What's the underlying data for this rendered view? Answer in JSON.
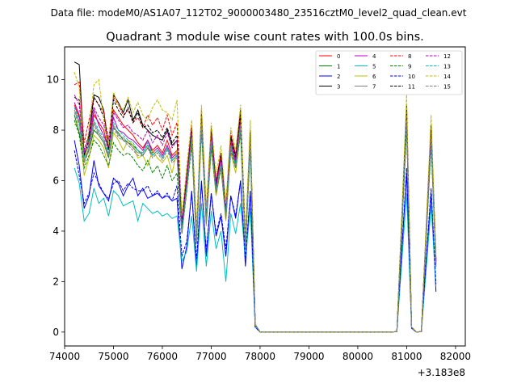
{
  "chart_data": {
    "type": "line",
    "suptitle": "Data file: modeM0/AS1A07_112T02_9000003480_23516cztM0_level2_quad_clean.evt",
    "title": "Quadrant 3 module wise count rates with 100.0s bins.",
    "xlabel": "",
    "ylabel": "",
    "x_offset_label": "+3.183e8",
    "xlim": [
      74000,
      82200
    ],
    "ylim": [
      -0.55,
      11.3
    ],
    "xticks": [
      74000,
      75000,
      76000,
      77000,
      78000,
      79000,
      80000,
      81000,
      82000
    ],
    "yticks": [
      0,
      2,
      4,
      6,
      8,
      10
    ],
    "x_start": 74200,
    "x_step": 100,
    "active_end": 78000,
    "zero_end": 80800,
    "series": [
      {
        "name": "0",
        "color": "#ff0000",
        "dash": false,
        "pre": [
          9.0,
          8.5,
          7.0,
          7.4,
          8.6,
          8.3,
          8.0,
          7.2,
          8.8,
          8.5,
          8.2,
          8.0,
          7.8,
          7.5,
          7.3,
          7.6,
          7.2,
          7.4,
          7.1,
          7.6,
          7.0,
          7.2,
          4.2,
          6.0,
          7.9,
          3.8,
          8.5,
          4.6,
          7.8,
          5.8,
          6.9,
          4.8,
          7.6,
          6.8,
          8.4,
          3.5,
          7.8,
          0.3
        ],
        "tail": [
          0.02,
          4.3,
          8.6,
          0.2,
          0.0,
          0.02,
          4.0,
          7.9,
          2.8
        ]
      },
      {
        "name": "1",
        "color": "#008000",
        "dash": false,
        "pre": [
          8.6,
          7.9,
          6.8,
          7.2,
          8.0,
          7.8,
          7.5,
          6.9,
          8.1,
          7.9,
          7.6,
          7.5,
          7.4,
          7.2,
          7.0,
          7.3,
          7.0,
          7.2,
          6.9,
          7.3,
          6.8,
          7.0,
          4.0,
          5.8,
          7.6,
          3.6,
          8.2,
          4.4,
          7.5,
          5.6,
          6.7,
          4.6,
          7.3,
          6.6,
          8.1,
          3.4,
          7.5,
          0.3
        ],
        "tail": [
          0.02,
          4.1,
          8.3,
          0.2,
          0.0,
          0.02,
          3.8,
          7.6,
          2.7
        ]
      },
      {
        "name": "2",
        "color": "#0000ff",
        "dash": false,
        "pre": [
          7.6,
          6.6,
          4.9,
          5.4,
          6.8,
          5.8,
          5.5,
          5.2,
          6.1,
          5.9,
          5.4,
          5.8,
          6.1,
          5.4,
          5.7,
          5.3,
          5.4,
          5.5,
          5.3,
          5.4,
          5.2,
          5.3,
          2.5,
          3.4,
          5.6,
          2.5,
          6.0,
          3.0,
          5.5,
          3.8,
          4.6,
          3.0,
          5.4,
          4.5,
          6.0,
          2.6,
          5.6,
          0.2
        ],
        "tail": [
          0.02,
          3.2,
          6.3,
          0.15,
          0.0,
          0.02,
          2.8,
          5.5,
          1.6
        ]
      },
      {
        "name": "3",
        "color": "#000000",
        "dash": false,
        "pre": [
          10.7,
          10.6,
          7.0,
          7.8,
          9.4,
          9.3,
          8.8,
          7.3,
          9.4,
          9.1,
          8.7,
          9.2,
          8.4,
          8.8,
          8.2,
          8.0,
          7.8,
          7.7,
          7.6,
          8.0,
          7.4,
          7.6,
          4.4,
          6.2,
          8.1,
          3.9,
          8.7,
          4.7,
          8.0,
          5.9,
          7.1,
          4.9,
          7.8,
          7.0,
          8.8,
          3.6,
          8.0,
          0.3
        ],
        "tail": [
          0.02,
          4.5,
          9.0,
          0.2,
          0.0,
          0.02,
          4.1,
          8.2,
          2.9
        ]
      },
      {
        "name": "4",
        "color": "#bf00bf",
        "dash": false,
        "pre": [
          9.1,
          8.6,
          7.1,
          7.6,
          8.8,
          8.2,
          7.8,
          7.3,
          8.5,
          8.0,
          7.9,
          7.7,
          7.6,
          7.4,
          7.2,
          7.6,
          7.1,
          7.3,
          7.0,
          7.4,
          6.9,
          7.1,
          4.1,
          5.9,
          7.8,
          3.7,
          8.4,
          4.5,
          7.7,
          5.7,
          6.8,
          4.7,
          7.5,
          6.7,
          8.3,
          3.5,
          7.7,
          0.3
        ],
        "tail": [
          0.02,
          4.2,
          8.5,
          0.2,
          0.0,
          0.02,
          3.9,
          7.8,
          2.8
        ]
      },
      {
        "name": "5",
        "color": "#00bfbf",
        "dash": false,
        "pre": [
          6.5,
          5.9,
          4.4,
          4.7,
          5.7,
          5.1,
          5.3,
          4.6,
          5.6,
          5.4,
          5.0,
          5.1,
          5.2,
          4.4,
          5.1,
          4.9,
          4.7,
          4.8,
          4.6,
          4.7,
          4.5,
          4.6,
          2.8,
          3.2,
          4.6,
          2.4,
          5.1,
          2.6,
          4.8,
          3.3,
          4.0,
          2.0,
          4.7,
          3.9,
          5.1,
          2.9,
          4.9,
          0.2
        ],
        "tail": [
          0.02,
          2.8,
          5.5,
          0.15,
          0.0,
          0.02,
          2.5,
          5.0,
          1.8
        ]
      },
      {
        "name": "6",
        "color": "#bfbf00",
        "dash": false,
        "pre": [
          8.2,
          8.4,
          6.2,
          6.9,
          7.8,
          7.6,
          7.3,
          6.5,
          7.9,
          7.6,
          7.2,
          7.6,
          7.4,
          6.9,
          7.0,
          6.6,
          7.2,
          6.9,
          6.7,
          7.0,
          6.3,
          7.2,
          4.0,
          5.6,
          7.5,
          3.5,
          8.0,
          4.2,
          7.3,
          5.4,
          6.5,
          4.4,
          7.1,
          6.3,
          7.9,
          3.3,
          7.4,
          0.3
        ],
        "tail": [
          0.02,
          4.4,
          8.8,
          0.2,
          0.0,
          0.02,
          4.0,
          8.0,
          2.7
        ]
      },
      {
        "name": "7",
        "color": "#7f7f7f",
        "dash": false,
        "pre": [
          8.8,
          8.3,
          6.8,
          7.3,
          8.3,
          7.9,
          7.6,
          7.0,
          8.2,
          7.8,
          7.7,
          7.5,
          7.3,
          7.1,
          7.1,
          7.4,
          7.0,
          7.2,
          6.9,
          7.3,
          6.8,
          7.0,
          4.0,
          5.8,
          7.7,
          3.6,
          8.3,
          4.4,
          7.6,
          5.6,
          6.7,
          4.6,
          7.4,
          6.6,
          8.2,
          3.4,
          7.6,
          0.3
        ],
        "tail": [
          0.02,
          4.2,
          8.4,
          0.2,
          0.0,
          0.02,
          3.9,
          7.7,
          2.7
        ]
      },
      {
        "name": "8",
        "color": "#ff0000",
        "dash": true,
        "pre": [
          9.8,
          9.9,
          7.5,
          8.4,
          9.3,
          9.0,
          8.7,
          7.6,
          9.3,
          9.0,
          8.6,
          8.8,
          8.3,
          8.5,
          8.1,
          8.6,
          8.2,
          8.5,
          8.0,
          8.6,
          7.8,
          8.3,
          4.3,
          6.3,
          8.2,
          3.9,
          8.8,
          4.7,
          8.1,
          6.0,
          7.1,
          4.9,
          7.9,
          7.0,
          8.7,
          3.6,
          8.0,
          0.3
        ],
        "tail": [
          0.02,
          4.5,
          8.9,
          0.2,
          0.0,
          0.02,
          4.1,
          8.1,
          2.9
        ]
      },
      {
        "name": "9",
        "color": "#008000",
        "dash": true,
        "pre": [
          8.4,
          7.8,
          6.5,
          7.0,
          7.6,
          7.4,
          7.0,
          6.6,
          7.5,
          7.2,
          7.0,
          7.1,
          6.9,
          6.6,
          6.4,
          6.8,
          6.3,
          6.6,
          6.1,
          6.6,
          6.0,
          6.3,
          3.9,
          5.6,
          7.4,
          3.5,
          8.0,
          4.3,
          7.3,
          5.5,
          6.5,
          4.5,
          7.2,
          6.5,
          7.9,
          3.3,
          7.3,
          0.3
        ],
        "tail": [
          0.02,
          4.0,
          8.1,
          0.2,
          0.0,
          0.02,
          3.7,
          7.4,
          2.6
        ]
      },
      {
        "name": "10",
        "color": "#0000ff",
        "dash": true,
        "pre": [
          7.2,
          6.2,
          5.1,
          5.5,
          6.3,
          5.9,
          5.5,
          5.3,
          5.9,
          6.0,
          5.6,
          5.9,
          5.7,
          5.6,
          5.6,
          5.8,
          5.4,
          5.6,
          5.3,
          5.5,
          5.2,
          5.8,
          3.0,
          3.6,
          5.5,
          2.9,
          5.9,
          3.2,
          5.5,
          3.9,
          4.7,
          3.3,
          5.4,
          4.6,
          6.0,
          2.9,
          5.6,
          0.2
        ],
        "tail": [
          0.02,
          3.3,
          6.5,
          0.15,
          0.0,
          0.02,
          2.9,
          5.7,
          1.9
        ]
      },
      {
        "name": "11",
        "color": "#000000",
        "dash": true,
        "pre": [
          9.3,
          9.2,
          6.9,
          7.6,
          9.3,
          9.0,
          8.5,
          7.2,
          9.2,
          8.8,
          8.5,
          8.9,
          8.3,
          8.7,
          8.1,
          8.2,
          7.9,
          8.0,
          7.7,
          8.1,
          7.5,
          7.8,
          4.3,
          6.1,
          8.0,
          3.8,
          8.6,
          4.6,
          7.9,
          5.8,
          7.0,
          4.8,
          7.7,
          6.9,
          8.6,
          3.6,
          7.9,
          0.3
        ],
        "tail": [
          0.02,
          4.4,
          8.8,
          0.2,
          0.0,
          0.02,
          4.0,
          8.0,
          2.8
        ]
      },
      {
        "name": "12",
        "color": "#bf00bf",
        "dash": true,
        "pre": [
          9.4,
          9.0,
          7.2,
          7.9,
          8.9,
          8.5,
          8.2,
          7.6,
          8.7,
          8.4,
          8.1,
          8.2,
          7.9,
          7.8,
          7.6,
          8.0,
          7.5,
          7.8,
          7.4,
          7.9,
          7.3,
          7.6,
          4.2,
          6.1,
          7.9,
          3.8,
          8.5,
          4.6,
          7.8,
          5.8,
          6.9,
          4.8,
          7.6,
          6.8,
          8.4,
          3.5,
          7.8,
          0.3
        ],
        "tail": [
          0.02,
          4.3,
          8.6,
          0.2,
          0.0,
          0.02,
          4.0,
          7.9,
          2.8
        ]
      },
      {
        "name": "13",
        "color": "#00bfbf",
        "dash": true,
        "pre": [
          8.9,
          8.4,
          6.9,
          7.5,
          8.4,
          8.0,
          7.7,
          7.1,
          8.3,
          8.0,
          7.8,
          7.6,
          7.5,
          7.2,
          7.1,
          7.5,
          7.0,
          7.2,
          6.9,
          7.3,
          6.8,
          7.0,
          4.0,
          5.8,
          7.7,
          3.6,
          8.3,
          4.4,
          7.6,
          5.6,
          6.7,
          4.6,
          7.4,
          6.6,
          8.2,
          3.4,
          7.6,
          0.3
        ],
        "tail": [
          0.02,
          4.2,
          8.4,
          0.2,
          0.0,
          0.02,
          3.9,
          7.7,
          2.7
        ]
      },
      {
        "name": "14",
        "color": "#bfbf00",
        "dash": true,
        "pre": [
          10.3,
          9.7,
          6.6,
          8.1,
          9.8,
          10.0,
          8.4,
          7.4,
          9.5,
          9.0,
          8.8,
          9.3,
          8.7,
          9.1,
          8.6,
          8.4,
          8.9,
          9.2,
          8.8,
          8.7,
          8.4,
          9.2,
          4.6,
          6.6,
          8.4,
          4.0,
          9.0,
          4.9,
          8.3,
          6.2,
          7.4,
          5.1,
          8.1,
          7.2,
          9.0,
          3.8,
          8.4,
          0.3
        ],
        "tail": [
          0.02,
          4.7,
          9.4,
          0.2,
          0.0,
          0.02,
          4.3,
          8.6,
          3.0
        ]
      },
      {
        "name": "15",
        "color": "#7f7f7f",
        "dash": true,
        "pre": [
          8.7,
          8.2,
          6.7,
          7.2,
          8.2,
          7.8,
          7.5,
          6.9,
          8.1,
          7.7,
          7.6,
          7.4,
          7.2,
          7.0,
          7.0,
          7.3,
          6.9,
          7.1,
          6.8,
          7.2,
          6.7,
          6.9,
          3.9,
          5.7,
          7.6,
          3.5,
          8.2,
          4.3,
          7.5,
          5.5,
          6.6,
          4.5,
          7.3,
          6.5,
          8.1,
          3.3,
          7.5,
          0.3
        ],
        "tail": [
          0.02,
          4.1,
          8.3,
          0.2,
          0.0,
          0.02,
          3.8,
          7.6,
          2.6
        ]
      }
    ]
  }
}
